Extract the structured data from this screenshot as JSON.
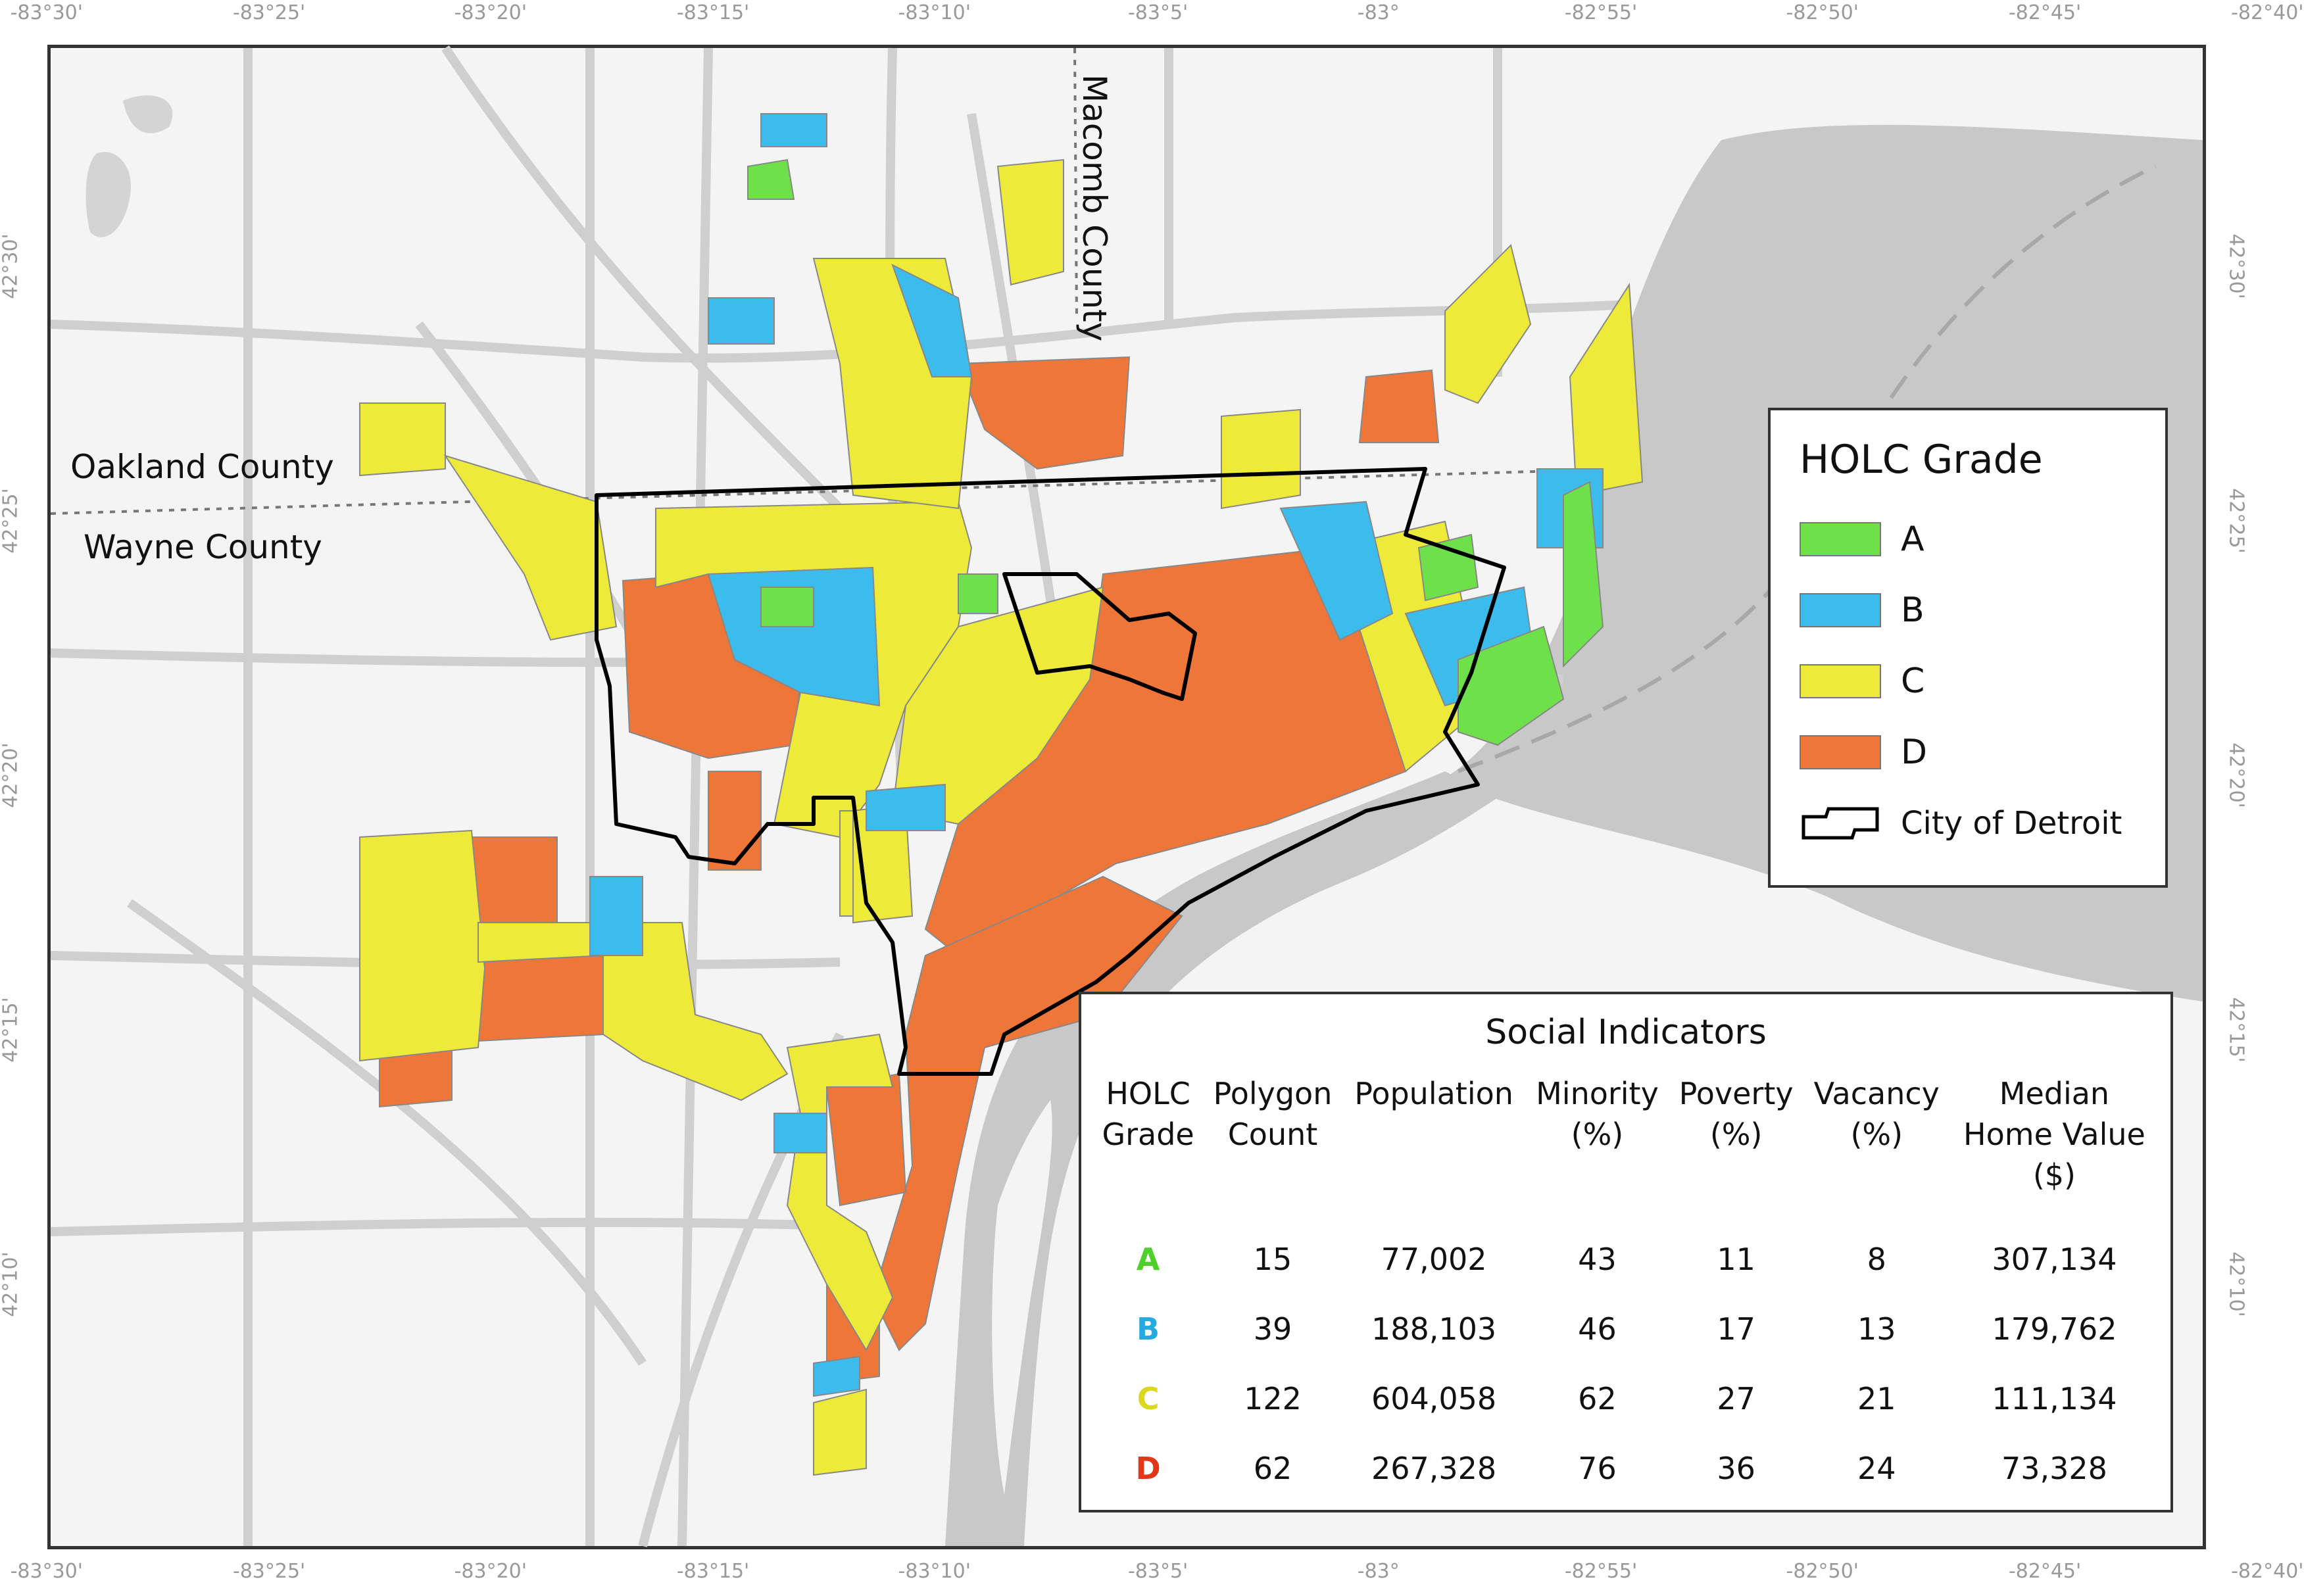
{
  "axes": {
    "top": [
      "-83°30'",
      "-83°25'",
      "-83°20'",
      "-83°15'",
      "-83°10'",
      "-83°5'",
      "-83°",
      "-82°55'",
      "-82°50'",
      "-82°45'",
      "-82°40'"
    ],
    "bottom": [
      "-83°30'",
      "-83°25'",
      "-83°20'",
      "-83°15'",
      "-83°10'",
      "-83°5'",
      "-83°",
      "-82°55'",
      "-82°50'",
      "-82°45'",
      "-82°40'"
    ],
    "left": [
      "42°30'",
      "42°25'",
      "42°20'",
      "42°15'",
      "42°10'"
    ],
    "right": [
      "42°30'",
      "42°25'",
      "42°20'",
      "42°15'",
      "42°10'"
    ]
  },
  "county_labels": {
    "oakland": "Oakland County",
    "wayne": "Wayne County",
    "macomb": "Macomb County"
  },
  "colors": {
    "A": "#6ee04a",
    "B": "#3cbcec",
    "C": "#eeea3a",
    "D": "#ee7638",
    "water": "#c8c8c8",
    "land": "#f4f4f4",
    "roads": "#d4d4d4"
  },
  "legend": {
    "title": "HOLC Grade",
    "items": [
      {
        "label": "A",
        "color": "#6ee04a"
      },
      {
        "label": "B",
        "color": "#3cbcec"
      },
      {
        "label": "C",
        "color": "#eeea3a"
      },
      {
        "label": "D",
        "color": "#ee7638"
      }
    ],
    "detroit_label": "City of Detroit"
  },
  "social_indicators": {
    "title": "Social Indicators",
    "headers": [
      "HOLC\nGrade",
      "Polygon\nCount",
      "Population",
      "Minority\n(%)",
      "Poverty\n(%)",
      "Vacancy\n(%)",
      "Median\nHome Value\n($)"
    ],
    "rows": [
      {
        "grade": "A",
        "color": "#4cd02a",
        "values": [
          "15",
          "77,002",
          "43",
          "11",
          "8",
          "307,134"
        ]
      },
      {
        "grade": "B",
        "color": "#26a8e0",
        "values": [
          "39",
          "188,103",
          "46",
          "17",
          "13",
          "179,762"
        ]
      },
      {
        "grade": "C",
        "color": "#dcd820",
        "values": [
          "122",
          "604,058",
          "62",
          "27",
          "21",
          "111,134"
        ]
      },
      {
        "grade": "D",
        "color": "#e03818",
        "values": [
          "62",
          "267,328",
          "76",
          "36",
          "24",
          "73,328"
        ]
      }
    ]
  }
}
